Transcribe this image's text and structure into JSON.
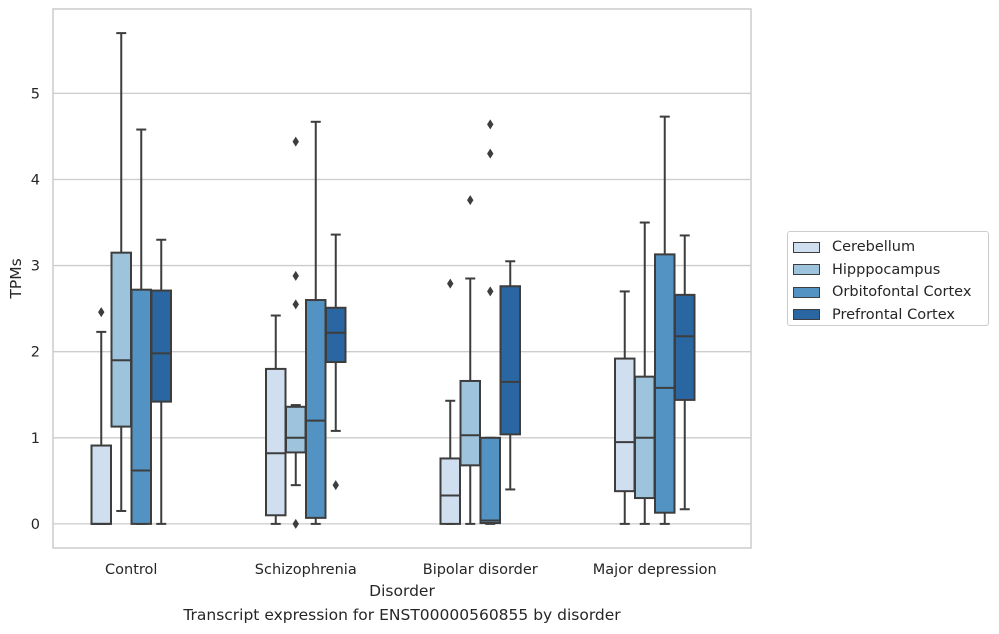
{
  "chart_data": {
    "type": "box",
    "title": "Transcript expression for ENST00000560855 by disorder",
    "xlabel": "Disorder",
    "ylabel": "TPMs",
    "ylim": [
      -0.28,
      5.98
    ],
    "yticks": [
      "0",
      "1",
      "2",
      "3",
      "4",
      "5"
    ],
    "grid": "horizontal",
    "legend_position": "right",
    "categories": [
      "Control",
      "Schizophrenia",
      "Bipolar disorder",
      "Major depression"
    ],
    "series": [
      {
        "name": "Cerebellum",
        "color": "#d0dff0",
        "boxes": [
          {
            "min": 0,
            "q1": 0,
            "median": 0,
            "q3": 0.91,
            "max": 2.23,
            "outliers": [
              2.46
            ]
          },
          {
            "min": 0,
            "q1": 0.1,
            "median": 0.82,
            "q3": 1.8,
            "max": 2.42,
            "outliers": []
          },
          {
            "min": 0,
            "q1": 0,
            "median": 0.33,
            "q3": 0.76,
            "max": 1.43,
            "outliers": [
              2.79
            ]
          },
          {
            "min": 0,
            "q1": 0.38,
            "median": 0.95,
            "q3": 1.92,
            "max": 2.7,
            "outliers": []
          }
        ]
      },
      {
        "name": "Hipppocampus",
        "color": "#9dc3dd",
        "boxes": [
          {
            "min": 0.15,
            "q1": 1.13,
            "median": 1.9,
            "q3": 3.15,
            "max": 5.7,
            "outliers": []
          },
          {
            "min": 0.45,
            "q1": 0.83,
            "median": 1.0,
            "q3": 1.36,
            "max": 1.38,
            "outliers": [
              0,
              2.55,
              2.88,
              4.44
            ]
          },
          {
            "min": 0,
            "q1": 0.68,
            "median": 1.03,
            "q3": 1.66,
            "max": 2.85,
            "outliers": [
              3.76
            ]
          },
          {
            "min": 0,
            "q1": 0.3,
            "median": 1.0,
            "q3": 1.71,
            "max": 3.5,
            "outliers": []
          }
        ]
      },
      {
        "name": "Orbitofontal Cortex",
        "color": "#5393c3",
        "boxes": [
          {
            "min": 0,
            "q1": 0,
            "median": 0.62,
            "q3": 2.72,
            "max": 4.58,
            "outliers": []
          },
          {
            "min": 0,
            "q1": 0.07,
            "median": 1.2,
            "q3": 2.6,
            "max": 4.67,
            "outliers": []
          },
          {
            "min": 0,
            "q1": 0.01,
            "median": 0.04,
            "q3": 1.0,
            "max": 1.0,
            "outliers": [
              2.7,
              4.3,
              4.64
            ]
          },
          {
            "min": 0,
            "q1": 0.13,
            "median": 1.58,
            "q3": 3.13,
            "max": 4.73,
            "outliers": []
          }
        ]
      },
      {
        "name": "Prefrontal Cortex",
        "color": "#2a67a2",
        "boxes": [
          {
            "min": 0,
            "q1": 1.42,
            "median": 1.98,
            "q3": 2.71,
            "max": 3.3,
            "outliers": []
          },
          {
            "min": 1.08,
            "q1": 1.88,
            "median": 2.22,
            "q3": 2.51,
            "max": 3.36,
            "outliers": [
              0.45
            ]
          },
          {
            "min": 0.4,
            "q1": 1.04,
            "median": 1.65,
            "q3": 2.76,
            "max": 3.05,
            "outliers": []
          },
          {
            "min": 0.17,
            "q1": 1.44,
            "median": 2.18,
            "q3": 2.66,
            "max": 3.35,
            "outliers": []
          }
        ]
      }
    ]
  }
}
